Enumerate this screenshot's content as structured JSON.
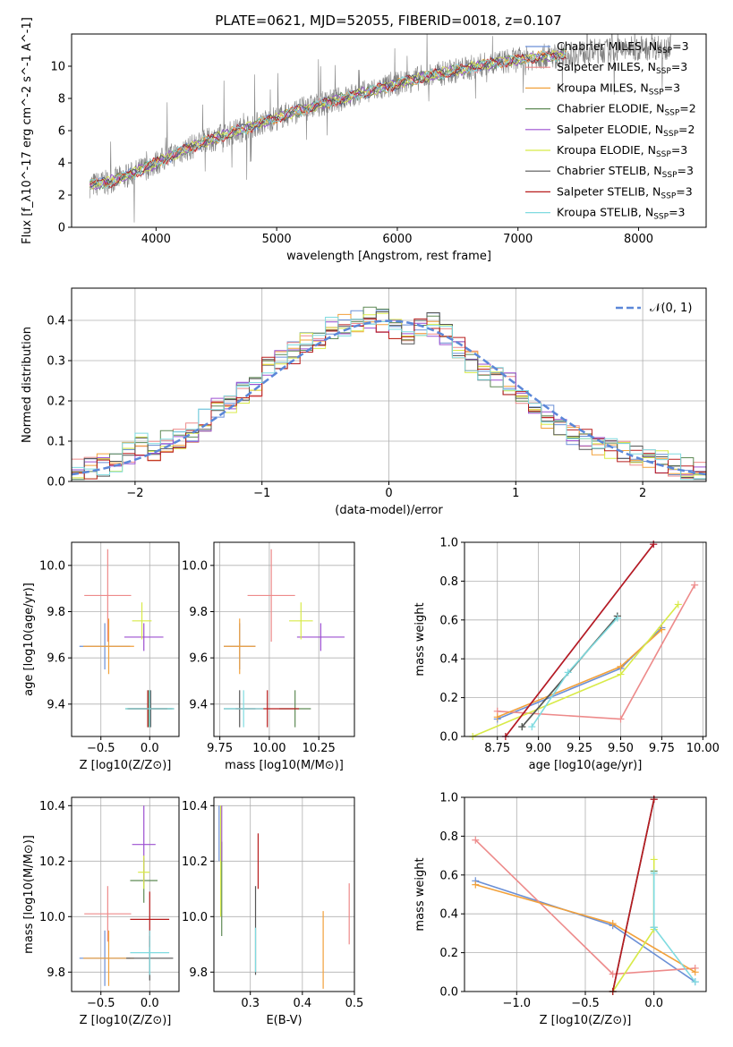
{
  "figure": {
    "title": "PLATE=0621, MJD=52055, FIBERID=0018, z=0.107"
  },
  "colors": {
    "Chabrier MILES": "#6a8fd6",
    "Salpeter MILES": "#ed8a8a",
    "Kroupa MILES": "#f2a13b",
    "Chabrier ELODIE": "#5e8a55",
    "Salpeter ELODIE": "#9c4fd1",
    "Kroupa ELODIE": "#d8ea48",
    "Chabrier STELIB": "#555555",
    "Salpeter STELIB": "#b81d1d",
    "Kroupa STELIB": "#7fdbe0",
    "data": "#808080",
    "normal": "#5b87d8",
    "grid": "#b0b0b0"
  },
  "chart_data": [
    {
      "id": "spectrum",
      "type": "line",
      "title": "PLATE=0621, MJD=52055, FIBERID=0018, z=0.107",
      "xlabel": "wavelength [Angstrom, rest frame]",
      "ylabel": "Flux [f_λ10^-17 erg cm^-2 s^-1 A^-1]",
      "xlim": [
        3300,
        8560
      ],
      "ylim": [
        0,
        12
      ],
      "xticks": [
        4000,
        5000,
        6000,
        7000,
        8000
      ],
      "yticks": [
        0,
        2,
        4,
        6,
        8,
        10
      ],
      "grid": false,
      "legend_position": "top-right",
      "continuum": {
        "x": [
          3450,
          3600,
          3800,
          4000,
          4200,
          4400,
          4600,
          4800,
          5000,
          5200,
          5400,
          5600,
          5800,
          6000,
          6200,
          6400,
          6600,
          6800,
          7000,
          7200,
          7400
        ],
        "y": [
          2.6,
          2.8,
          3.3,
          4.0,
          4.7,
          5.3,
          5.8,
          6.3,
          6.8,
          7.3,
          7.7,
          8.1,
          8.5,
          8.9,
          9.3,
          9.6,
          9.9,
          10.2,
          10.4,
          10.6,
          10.7
        ]
      },
      "observed": {
        "x": [
          3450,
          3600,
          3800,
          4000,
          4200,
          4400,
          4600,
          4800,
          5000,
          5200,
          5400,
          5600,
          5800,
          6000,
          6200,
          6400,
          6600,
          6800,
          7000,
          7200,
          7400,
          7600,
          7800,
          8000,
          8200,
          8270
        ],
        "y": [
          2.6,
          2.8,
          3.3,
          4.0,
          4.7,
          5.3,
          5.8,
          6.3,
          6.8,
          7.3,
          7.7,
          8.1,
          8.5,
          8.9,
          9.3,
          9.6,
          9.9,
          10.2,
          10.4,
          10.6,
          10.7,
          10.9,
          11.0,
          11.1,
          11.2,
          11.2
        ]
      },
      "series": [
        {
          "name": "Chabrier MILES",
          "n_ssp": "3"
        },
        {
          "name": "Salpeter MILES",
          "n_ssp": "3"
        },
        {
          "name": "Kroupa MILES",
          "n_ssp": "3"
        },
        {
          "name": "Chabrier ELODIE",
          "n_ssp": "2"
        },
        {
          "name": "Salpeter ELODIE",
          "n_ssp": "2"
        },
        {
          "name": "Kroupa ELODIE",
          "n_ssp": "3"
        },
        {
          "name": "Chabrier STELIB",
          "n_ssp": "3"
        },
        {
          "name": "Salpeter STELIB",
          "n_ssp": "3"
        },
        {
          "name": "Kroupa STELIB",
          "n_ssp": "3"
        }
      ]
    },
    {
      "id": "residuals",
      "type": "line",
      "xlabel": "(data-model)/error",
      "ylabel": "Normed distribution",
      "xlim": [
        -2.5,
        2.5
      ],
      "ylim": [
        0,
        0.48
      ],
      "xticks": [
        -2,
        -1,
        0,
        1,
        2
      ],
      "yticks": [
        0.0,
        0.1,
        0.2,
        0.3,
        0.4
      ],
      "grid": true,
      "legend_position": "top-right",
      "legend_label": "N(0,1)",
      "bin_width": 0.1,
      "bin_start": -2.5,
      "histogram": [
        0.03,
        0.03,
        0.04,
        0.05,
        0.07,
        0.09,
        0.08,
        0.1,
        0.1,
        0.12,
        0.15,
        0.18,
        0.2,
        0.22,
        0.24,
        0.28,
        0.3,
        0.32,
        0.34,
        0.36,
        0.38,
        0.39,
        0.4,
        0.41,
        0.4,
        0.38,
        0.37,
        0.38,
        0.39,
        0.36,
        0.33,
        0.3,
        0.28,
        0.26,
        0.24,
        0.2,
        0.18,
        0.16,
        0.14,
        0.12,
        0.1,
        0.09,
        0.08,
        0.07,
        0.06,
        0.05,
        0.05,
        0.04,
        0.03,
        0.02
      ],
      "normal": {
        "mean": 0,
        "std": 1
      }
    },
    {
      "id": "z-age",
      "type": "scatter",
      "xlabel": "Z [log10(Z/Z⊙)]",
      "ylabel": "age  [log10(age/yr)]",
      "xlim": [
        -0.8,
        0.3
      ],
      "ylim": [
        9.26,
        10.1
      ],
      "xticks": [
        -0.5,
        0.0
      ],
      "yticks": [
        9.4,
        9.6,
        9.8,
        10.0
      ],
      "grid": true,
      "points": [
        {
          "series": "Chabrier MILES",
          "x": -0.46,
          "y": 9.65,
          "xerr": 0.26,
          "yerr": 0.1
        },
        {
          "series": "Salpeter MILES",
          "x": -0.43,
          "y": 9.87,
          "xerr": 0.24,
          "yerr": 0.2
        },
        {
          "series": "Kroupa MILES",
          "x": -0.42,
          "y": 9.65,
          "xerr": 0.26,
          "yerr": 0.12
        },
        {
          "series": "Chabrier ELODIE",
          "x": -0.01,
          "y": 9.38,
          "xerr": 0.24,
          "yerr": 0.08
        },
        {
          "series": "Salpeter ELODIE",
          "x": -0.06,
          "y": 9.69,
          "xerr": 0.2,
          "yerr": 0.06
        },
        {
          "series": "Kroupa ELODIE",
          "x": -0.08,
          "y": 9.76,
          "xerr": 0.1,
          "yerr": 0.08
        },
        {
          "series": "Chabrier STELIB",
          "x": 0.01,
          "y": 9.38,
          "xerr": 0.24,
          "yerr": 0.08
        },
        {
          "series": "Salpeter STELIB",
          "x": -0.02,
          "y": 9.38,
          "xerr": 0.2,
          "yerr": 0.08
        },
        {
          "series": "Kroupa STELIB",
          "x": 0.0,
          "y": 9.38,
          "xerr": 0.25,
          "yerr": 0.08
        }
      ]
    },
    {
      "id": "mass-age",
      "type": "scatter",
      "xlabel": "mass [log10(M/M⊙)]",
      "ylabel": "",
      "xlim": [
        9.72,
        10.43
      ],
      "ylim": [
        9.26,
        10.1
      ],
      "xticks": [
        9.75,
        10.0,
        10.25
      ],
      "yticks": [
        9.4,
        9.6,
        9.8,
        10.0
      ],
      "grid": true,
      "points": [
        {
          "series": "Chabrier MILES",
          "x": 9.85,
          "y": 9.65,
          "xerr": 0.08,
          "yerr": 0.1
        },
        {
          "series": "Salpeter MILES",
          "x": 10.01,
          "y": 9.87,
          "xerr": 0.12,
          "yerr": 0.2
        },
        {
          "series": "Kroupa MILES",
          "x": 9.85,
          "y": 9.65,
          "xerr": 0.08,
          "yerr": 0.12
        },
        {
          "series": "Chabrier ELODIE",
          "x": 10.13,
          "y": 9.38,
          "xerr": 0.08,
          "yerr": 0.08
        },
        {
          "series": "Salpeter ELODIE",
          "x": 10.26,
          "y": 9.69,
          "xerr": 0.12,
          "yerr": 0.06
        },
        {
          "series": "Kroupa ELODIE",
          "x": 10.16,
          "y": 9.76,
          "xerr": 0.06,
          "yerr": 0.08
        },
        {
          "series": "Chabrier STELIB",
          "x": 9.85,
          "y": 9.38,
          "xerr": 0.08,
          "yerr": 0.08
        },
        {
          "series": "Salpeter STELIB",
          "x": 9.99,
          "y": 9.38,
          "xerr": 0.16,
          "yerr": 0.08
        },
        {
          "series": "Kroupa STELIB",
          "x": 9.87,
          "y": 9.38,
          "xerr": 0.1,
          "yerr": 0.08
        }
      ]
    },
    {
      "id": "age-weight",
      "type": "line",
      "xlabel": "age  [log10(age/yr)]",
      "ylabel": "mass weight",
      "xlim": [
        8.55,
        10.02
      ],
      "ylim": [
        0,
        1
      ],
      "xticks": [
        8.75,
        9.0,
        9.25,
        9.5,
        9.75,
        10.0
      ],
      "yticks": [
        0.0,
        0.2,
        0.4,
        0.6,
        0.8,
        1.0
      ],
      "grid": true,
      "series": [
        {
          "name": "Chabrier MILES",
          "x": [
            8.75,
            9.5,
            9.75
          ],
          "y": [
            0.09,
            0.35,
            0.56
          ]
        },
        {
          "name": "Salpeter MILES",
          "x": [
            8.75,
            9.5,
            9.95
          ],
          "y": [
            0.13,
            0.09,
            0.78
          ]
        },
        {
          "name": "Kroupa MILES",
          "x": [
            8.75,
            9.5,
            9.75
          ],
          "y": [
            0.1,
            0.36,
            0.55
          ]
        },
        {
          "name": "Chabrier ELODIE",
          "x": [
            8.9,
            9.48
          ],
          "y": [
            0.05,
            0.62
          ]
        },
        {
          "name": "Salpeter ELODIE",
          "x": [
            8.8,
            9.7
          ],
          "y": [
            0.0,
            0.99
          ]
        },
        {
          "name": "Kroupa ELODIE",
          "x": [
            8.6,
            9.5,
            9.85
          ],
          "y": [
            0.0,
            0.32,
            0.68
          ]
        },
        {
          "name": "Chabrier STELIB",
          "x": [
            8.9,
            9.48
          ],
          "y": [
            0.05,
            0.62
          ]
        },
        {
          "name": "Salpeter STELIB",
          "x": [
            8.8,
            9.7
          ],
          "y": [
            0.0,
            0.99
          ]
        },
        {
          "name": "Kroupa STELIB",
          "x": [
            8.96,
            9.18,
            9.48
          ],
          "y": [
            0.05,
            0.33,
            0.61
          ]
        }
      ]
    },
    {
      "id": "z-mass",
      "type": "scatter",
      "xlabel": "Z [log10(Z/Z⊙)]",
      "ylabel": "mass [log10(M/M⊙)]",
      "xlim": [
        -0.8,
        0.3
      ],
      "ylim": [
        9.73,
        10.43
      ],
      "xticks": [
        -0.5,
        0.0
      ],
      "yticks": [
        9.8,
        10.0,
        10.2,
        10.4
      ],
      "grid": true,
      "points": [
        {
          "series": "Chabrier MILES",
          "x": -0.46,
          "y": 9.85,
          "xerr": 0.26,
          "yerr": 0.1
        },
        {
          "series": "Salpeter MILES",
          "x": -0.43,
          "y": 10.01,
          "xerr": 0.24,
          "yerr": 0.1
        },
        {
          "series": "Kroupa MILES",
          "x": -0.42,
          "y": 9.85,
          "xerr": 0.26,
          "yerr": 0.1
        },
        {
          "series": "Chabrier ELODIE",
          "x": -0.06,
          "y": 10.13,
          "xerr": 0.14,
          "yerr": 0.08
        },
        {
          "series": "Salpeter ELODIE",
          "x": -0.06,
          "y": 10.26,
          "xerr": 0.12,
          "yerr": 0.14
        },
        {
          "series": "Kroupa ELODIE",
          "x": -0.06,
          "y": 10.16,
          "xerr": 0.06,
          "yerr": 0.06
        },
        {
          "series": "Chabrier STELIB",
          "x": 0.0,
          "y": 9.85,
          "xerr": 0.24,
          "yerr": 0.08
        },
        {
          "series": "Salpeter STELIB",
          "x": 0.0,
          "y": 9.99,
          "xerr": 0.2,
          "yerr": 0.1
        },
        {
          "series": "Kroupa STELIB",
          "x": 0.0,
          "y": 9.87,
          "xerr": 0.2,
          "yerr": 0.08
        }
      ]
    },
    {
      "id": "ebv-mass",
      "type": "scatter",
      "xlabel": "E(B-V)",
      "ylabel": "",
      "xlim": [
        0.23,
        0.5
      ],
      "ylim": [
        9.73,
        10.43
      ],
      "xticks": [
        0.3,
        0.4,
        0.5
      ],
      "yticks": [
        9.8,
        10.0,
        10.2,
        10.4
      ],
      "grid": true,
      "points": [
        {
          "series": "Chabrier MILES",
          "x": 0.24,
          "y": 10.3,
          "xerr": 0,
          "yerr": 0.1
        },
        {
          "series": "Salpeter MILES",
          "x": 0.49,
          "y": 10.01,
          "xerr": 0,
          "yerr": 0.11
        },
        {
          "series": "Kroupa MILES",
          "x": 0.44,
          "y": 9.88,
          "xerr": 0,
          "yerr": 0.14
        },
        {
          "series": "Chabrier ELODIE",
          "x": 0.245,
          "y": 10.1,
          "xerr": 0,
          "yerr": 0.17
        },
        {
          "series": "Salpeter ELODIE",
          "x": 0.245,
          "y": 10.3,
          "xerr": 0,
          "yerr": 0.1
        },
        {
          "series": "Kroupa ELODIE",
          "x": 0.243,
          "y": 10.2,
          "xerr": 0,
          "yerr": 0.2
        },
        {
          "series": "Chabrier STELIB",
          "x": 0.31,
          "y": 9.95,
          "xerr": 0,
          "yerr": 0.16
        },
        {
          "series": "Salpeter STELIB",
          "x": 0.315,
          "y": 10.2,
          "xerr": 0,
          "yerr": 0.1
        },
        {
          "series": "Kroupa STELIB",
          "x": 0.31,
          "y": 9.88,
          "xerr": 0,
          "yerr": 0.08
        }
      ]
    },
    {
      "id": "zmet-weight",
      "type": "line",
      "xlabel": "Z [log10(Z/Z⊙)]",
      "ylabel": "mass weight",
      "xlim": [
        -1.38,
        0.38
      ],
      "ylim": [
        0,
        1
      ],
      "xticks": [
        -1.0,
        -0.5,
        0.0
      ],
      "yticks": [
        0.0,
        0.2,
        0.4,
        0.6,
        0.8,
        1.0
      ],
      "grid": true,
      "series": [
        {
          "name": "Chabrier MILES",
          "x": [
            -1.3,
            -0.3,
            0.3
          ],
          "y": [
            0.57,
            0.34,
            0.05
          ]
        },
        {
          "name": "Salpeter MILES",
          "x": [
            -1.3,
            -0.3,
            0.3
          ],
          "y": [
            0.78,
            0.09,
            0.12
          ]
        },
        {
          "name": "Kroupa MILES",
          "x": [
            -1.3,
            -0.3,
            0.3
          ],
          "y": [
            0.55,
            0.35,
            0.1
          ]
        },
        {
          "name": "Chabrier ELODIE",
          "x": [
            0.0,
            0.0
          ],
          "y": [
            0.62,
            0.33
          ]
        },
        {
          "name": "Salpeter ELODIE",
          "x": [
            -0.3,
            0.0
          ],
          "y": [
            0.0,
            0.99
          ]
        },
        {
          "name": "Kroupa ELODIE",
          "x": [
            -0.3,
            0.0,
            0.0
          ],
          "y": [
            0.0,
            0.32,
            0.68
          ]
        },
        {
          "name": "Chabrier STELIB",
          "x": [
            -0.3,
            0.0
          ],
          "y": [
            0.0,
            0.99
          ]
        },
        {
          "name": "Salpeter STELIB",
          "x": [
            -0.3,
            0.0
          ],
          "y": [
            0.0,
            0.99
          ]
        },
        {
          "name": "Kroupa STELIB",
          "x": [
            0.0,
            0.0,
            0.3
          ],
          "y": [
            0.61,
            0.33,
            0.05
          ]
        }
      ]
    }
  ]
}
